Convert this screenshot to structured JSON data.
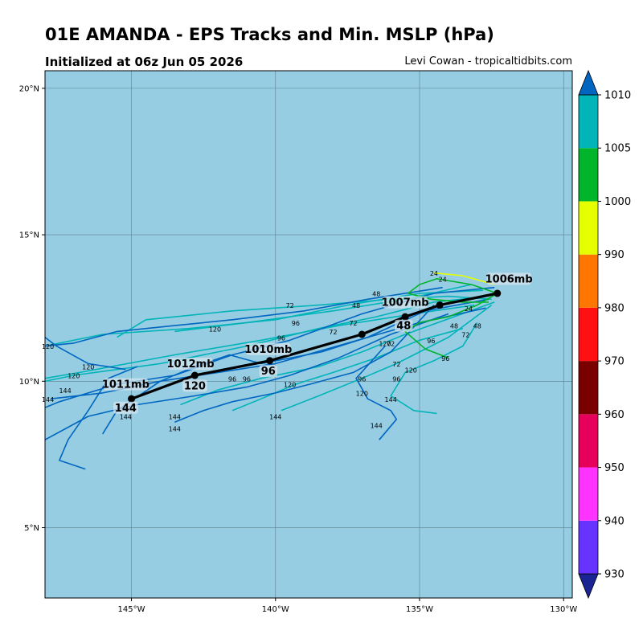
{
  "title": "01E AMANDA - EPS Tracks and Min. MSLP (hPa)",
  "subtitle": "Initialized at 06z Jun 05 2026",
  "credit": "Levi Cowan - tropicaltidbits.com",
  "colors": {
    "ocean": "#96cde3",
    "grid": "#5a7f8f",
    "mean_track": "#000000",
    "label_box": "#d8e6ee"
  },
  "map": {
    "lon_range": [
      -148,
      -129.7
    ],
    "lat_range": [
      2.6,
      20.6
    ],
    "lon_ticks": [
      {
        "value": -145,
        "label": "145°W"
      },
      {
        "value": -140,
        "label": "140°W"
      },
      {
        "value": -135,
        "label": "135°W"
      },
      {
        "value": -130,
        "label": "130°W"
      }
    ],
    "lat_ticks": [
      {
        "value": 20,
        "label": "20°N"
      },
      {
        "value": 15,
        "label": "15°N"
      },
      {
        "value": 10,
        "label": "10°N"
      },
      {
        "value": 5,
        "label": "5°N"
      }
    ]
  },
  "colorbar": {
    "levels": [
      930,
      940,
      950,
      960,
      970,
      980,
      990,
      1000,
      1005,
      1010
    ],
    "colors": [
      "#1a2493",
      "#6633ff",
      "#ff33ff",
      "#e6005c",
      "#7a0000",
      "#ff1111",
      "#ff7700",
      "#e5ff00",
      "#00b52a",
      "#00b4b8",
      "#0066bf"
    ]
  },
  "chart_data": {
    "type": "map-tracks",
    "storm": "01E AMANDA",
    "ensemble_mean": [
      {
        "lon": -132.3,
        "lat": 13.0,
        "hour": 0
      },
      {
        "lon": -134.3,
        "lat": 12.6,
        "hour": 24
      },
      {
        "lon": -135.5,
        "lat": 12.2,
        "hour": 48
      },
      {
        "lon": -137.0,
        "lat": 11.6,
        "hour": 72
      },
      {
        "lon": -140.2,
        "lat": 10.7,
        "hour": 96
      },
      {
        "lon": -142.8,
        "lat": 10.2,
        "hour": 120
      },
      {
        "lon": -145.0,
        "lat": 9.4,
        "hour": 144
      }
    ],
    "point_labels": [
      {
        "text": "1006mb",
        "lon": -131.9,
        "lat": 13.4
      },
      {
        "text": "1007mb",
        "lon": -135.5,
        "lat": 12.6
      },
      {
        "text": "48",
        "lon": -135.55,
        "lat": 11.8
      },
      {
        "text": "1010mb",
        "lon": -140.25,
        "lat": 11.0
      },
      {
        "text": "96",
        "lon": -140.25,
        "lat": 10.25
      },
      {
        "text": "1012mb",
        "lon": -142.95,
        "lat": 10.5
      },
      {
        "text": "120",
        "lon": -142.8,
        "lat": 9.75
      },
      {
        "text": "1011mb",
        "lon": -145.2,
        "lat": 9.8
      },
      {
        "text": "144",
        "lon": -145.2,
        "lat": 9.0
      }
    ],
    "member_hour_labels": [
      {
        "text": "24",
        "lon": -134.5,
        "lat": 13.6
      },
      {
        "text": "24",
        "lon": -134.2,
        "lat": 13.4
      },
      {
        "text": "24",
        "lon": -133.3,
        "lat": 12.4
      },
      {
        "text": "48",
        "lon": -136.5,
        "lat": 12.9
      },
      {
        "text": "48",
        "lon": -137.2,
        "lat": 12.5
      },
      {
        "text": "48",
        "lon": -133.8,
        "lat": 11.8
      },
      {
        "text": "48",
        "lon": -133.0,
        "lat": 11.8
      },
      {
        "text": "72",
        "lon": -139.5,
        "lat": 12.5
      },
      {
        "text": "72",
        "lon": -137.3,
        "lat": 11.9
      },
      {
        "text": "72",
        "lon": -138.0,
        "lat": 11.6
      },
      {
        "text": "72",
        "lon": -136.0,
        "lat": 11.2
      },
      {
        "text": "72",
        "lon": -133.4,
        "lat": 11.5
      },
      {
        "text": "72",
        "lon": -135.8,
        "lat": 10.5
      },
      {
        "text": "96",
        "lon": -139.3,
        "lat": 11.9
      },
      {
        "text": "96",
        "lon": -139.8,
        "lat": 11.4
      },
      {
        "text": "96",
        "lon": -134.6,
        "lat": 11.3
      },
      {
        "text": "96",
        "lon": -134.1,
        "lat": 10.7
      },
      {
        "text": "96",
        "lon": -137.0,
        "lat": 10.0
      },
      {
        "text": "96",
        "lon": -135.8,
        "lat": 10.0
      },
      {
        "text": "96",
        "lon": -141.0,
        "lat": 10.0
      },
      {
        "text": "96",
        "lon": -141.5,
        "lat": 10.0
      },
      {
        "text": "120",
        "lon": -142.1,
        "lat": 11.7
      },
      {
        "text": "120",
        "lon": -136.2,
        "lat": 11.2
      },
      {
        "text": "120",
        "lon": -135.3,
        "lat": 10.3
      },
      {
        "text": "120",
        "lon": -139.5,
        "lat": 9.8
      },
      {
        "text": "120",
        "lon": -137.0,
        "lat": 9.5
      },
      {
        "text": "120",
        "lon": -146.5,
        "lat": 10.4
      },
      {
        "text": "120",
        "lon": -147.0,
        "lat": 10.1
      },
      {
        "text": "120",
        "lon": -147.9,
        "lat": 11.1
      },
      {
        "text": "144",
        "lon": -147.9,
        "lat": 9.3
      },
      {
        "text": "144",
        "lon": -147.3,
        "lat": 9.6
      },
      {
        "text": "144",
        "lon": -143.5,
        "lat": 8.7
      },
      {
        "text": "144",
        "lon": -143.5,
        "lat": 8.3
      },
      {
        "text": "144",
        "lon": -140.0,
        "lat": 8.7
      },
      {
        "text": "144",
        "lon": -136.0,
        "lat": 9.3
      },
      {
        "text": "144",
        "lon": -136.5,
        "lat": 8.4
      },
      {
        "text": "144",
        "lon": -145.2,
        "lat": 8.7
      }
    ],
    "members": [
      {
        "color": "#00b4b8",
        "points": [
          [
            -132.6,
            12.9
          ],
          [
            -134.5,
            12.7
          ],
          [
            -136.5,
            12.2
          ],
          [
            -138.5,
            11.8
          ],
          [
            -141.0,
            11.2
          ],
          [
            -144.0,
            10.6
          ],
          [
            -147.0,
            10.2
          ],
          [
            -148.0,
            10.0
          ]
        ]
      },
      {
        "color": "#00b4b8",
        "points": [
          [
            -132.8,
            13.1
          ],
          [
            -135.0,
            13.0
          ],
          [
            -137.5,
            12.6
          ],
          [
            -140.0,
            12.1
          ],
          [
            -143.0,
            11.8
          ],
          [
            -146.0,
            11.6
          ],
          [
            -148.0,
            11.2
          ]
        ]
      },
      {
        "color": "#00b4b8",
        "points": [
          [
            -132.5,
            12.8
          ],
          [
            -134.0,
            12.9
          ],
          [
            -136.0,
            12.8
          ],
          [
            -138.5,
            12.6
          ],
          [
            -141.5,
            12.4
          ],
          [
            -144.5,
            12.1
          ],
          [
            -145.5,
            11.5
          ]
        ]
      },
      {
        "color": "#00b4b8",
        "points": [
          [
            -132.4,
            12.7
          ],
          [
            -133.8,
            12.2
          ],
          [
            -135.5,
            11.6
          ],
          [
            -137.0,
            11.0
          ],
          [
            -138.5,
            10.5
          ],
          [
            -140.5,
            10.1
          ],
          [
            -142.0,
            9.7
          ],
          [
            -143.3,
            9.2
          ]
        ]
      },
      {
        "color": "#00b4b8",
        "points": [
          [
            -132.5,
            12.6
          ],
          [
            -134.0,
            11.5
          ],
          [
            -135.8,
            10.6
          ],
          [
            -137.0,
            10.1
          ],
          [
            -138.5,
            9.5
          ],
          [
            -139.8,
            9.0
          ]
        ]
      },
      {
        "color": "#00b4b8",
        "points": [
          [
            -133.0,
            12.0
          ],
          [
            -133.5,
            11.2
          ],
          [
            -134.5,
            10.7
          ],
          [
            -135.5,
            10.3
          ],
          [
            -136.0,
            9.5
          ],
          [
            -135.2,
            9.0
          ],
          [
            -134.4,
            8.9
          ]
        ]
      },
      {
        "color": "#00b4b8",
        "points": [
          [
            -133.1,
            12.6
          ],
          [
            -135.2,
            12.3
          ],
          [
            -137.8,
            11.9
          ],
          [
            -140.5,
            11.4
          ],
          [
            -143.5,
            10.9
          ],
          [
            -146.8,
            10.3
          ],
          [
            -148.0,
            10.1
          ]
        ]
      },
      {
        "color": "#00b4b8",
        "points": [
          [
            -133.5,
            11.8
          ],
          [
            -135.0,
            11.4
          ],
          [
            -136.5,
            10.8
          ],
          [
            -138.0,
            10.3
          ],
          [
            -139.3,
            9.9
          ],
          [
            -140.5,
            9.4
          ],
          [
            -141.5,
            9.0
          ]
        ]
      },
      {
        "color": "#00b4b8",
        "points": [
          [
            -133.2,
            13.3
          ],
          [
            -135.5,
            12.8
          ],
          [
            -138.0,
            12.4
          ],
          [
            -141.0,
            12.0
          ],
          [
            -143.5,
            11.7
          ]
        ]
      },
      {
        "color": "#0066bf",
        "points": [
          [
            -132.4,
            13.2
          ],
          [
            -134.5,
            13.0
          ],
          [
            -137.0,
            12.3
          ],
          [
            -139.5,
            11.4
          ],
          [
            -141.5,
            10.9
          ],
          [
            -143.5,
            10.2
          ],
          [
            -145.5,
            9.9
          ],
          [
            -147.5,
            9.3
          ],
          [
            -148.0,
            9.1
          ]
        ]
      },
      {
        "color": "#0066bf",
        "points": [
          [
            -132.7,
            12.5
          ],
          [
            -135.0,
            12.0
          ],
          [
            -137.5,
            11.3
          ],
          [
            -140.0,
            10.6
          ],
          [
            -142.0,
            10.3
          ],
          [
            -144.0,
            10.0
          ],
          [
            -146.0,
            9.6
          ],
          [
            -147.8,
            9.4
          ]
        ]
      },
      {
        "color": "#0066bf",
        "points": [
          [
            -132.6,
            12.8
          ],
          [
            -134.8,
            12.4
          ],
          [
            -136.8,
            11.5
          ],
          [
            -138.4,
            11.0
          ],
          [
            -140.5,
            10.6
          ],
          [
            -141.6,
            10.9
          ],
          [
            -142.8,
            10.5
          ],
          [
            -144.0,
            10.0
          ],
          [
            -145.5,
            9.0
          ],
          [
            -146.0,
            8.2
          ]
        ]
      },
      {
        "color": "#0066bf",
        "points": [
          [
            -134.0,
            12.3
          ],
          [
            -136.0,
            11.6
          ],
          [
            -137.8,
            10.8
          ],
          [
            -139.5,
            10.2
          ],
          [
            -141.0,
            9.8
          ],
          [
            -142.8,
            9.5
          ],
          [
            -144.8,
            9.2
          ],
          [
            -146.5,
            8.8
          ],
          [
            -148.0,
            8.0
          ]
        ]
      },
      {
        "color": "#0066bf",
        "points": [
          [
            -134.5,
            12.6
          ],
          [
            -136.0,
            11.0
          ],
          [
            -137.3,
            10.3
          ],
          [
            -138.8,
            9.9
          ],
          [
            -140.0,
            9.6
          ],
          [
            -141.5,
            9.3
          ],
          [
            -142.5,
            9.0
          ],
          [
            -143.5,
            8.6
          ]
        ]
      },
      {
        "color": "#0066bf",
        "points": [
          [
            -134.2,
            13.2
          ],
          [
            -136.8,
            12.8
          ],
          [
            -139.0,
            12.4
          ],
          [
            -141.5,
            12.1
          ],
          [
            -143.5,
            11.9
          ],
          [
            -145.5,
            11.7
          ],
          [
            -147.0,
            11.3
          ],
          [
            -148.0,
            11.2
          ]
        ]
      },
      {
        "color": "#0066bf",
        "points": [
          [
            -136.2,
            11.2
          ],
          [
            -137.2,
            10.1
          ],
          [
            -136.8,
            9.4
          ],
          [
            -136.0,
            9.0
          ],
          [
            -135.8,
            8.7
          ],
          [
            -136.4,
            8.0
          ]
        ]
      },
      {
        "color": "#0066bf",
        "points": [
          [
            -144.8,
            10.5
          ],
          [
            -145.8,
            10.1
          ],
          [
            -146.5,
            9.0
          ],
          [
            -147.2,
            8.0
          ],
          [
            -147.5,
            7.3
          ],
          [
            -146.6,
            7.0
          ]
        ]
      },
      {
        "color": "#0066bf",
        "points": [
          [
            -145.2,
            10.4
          ],
          [
            -146.5,
            10.6
          ],
          [
            -147.6,
            11.2
          ],
          [
            -148.0,
            11.5
          ]
        ]
      },
      {
        "color": "#00b52a",
        "points": [
          [
            -132.3,
            13.0
          ],
          [
            -133.2,
            13.3
          ],
          [
            -134.4,
            13.5
          ],
          [
            -135.0,
            13.3
          ],
          [
            -135.4,
            13.0
          ],
          [
            -134.6,
            12.8
          ],
          [
            -133.5,
            12.7
          ],
          [
            -132.6,
            12.7
          ]
        ]
      },
      {
        "color": "#00b52a",
        "points": [
          [
            -132.3,
            13.0
          ],
          [
            -133.0,
            12.6
          ],
          [
            -134.0,
            12.2
          ],
          [
            -135.0,
            12.0
          ],
          [
            -135.5,
            11.7
          ],
          [
            -134.8,
            11.1
          ],
          [
            -134.0,
            10.8
          ]
        ]
      },
      {
        "color": "#e5ff00",
        "points": [
          [
            -132.4,
            13.3
          ],
          [
            -133.5,
            13.6
          ],
          [
            -134.5,
            13.7
          ]
        ]
      }
    ]
  }
}
